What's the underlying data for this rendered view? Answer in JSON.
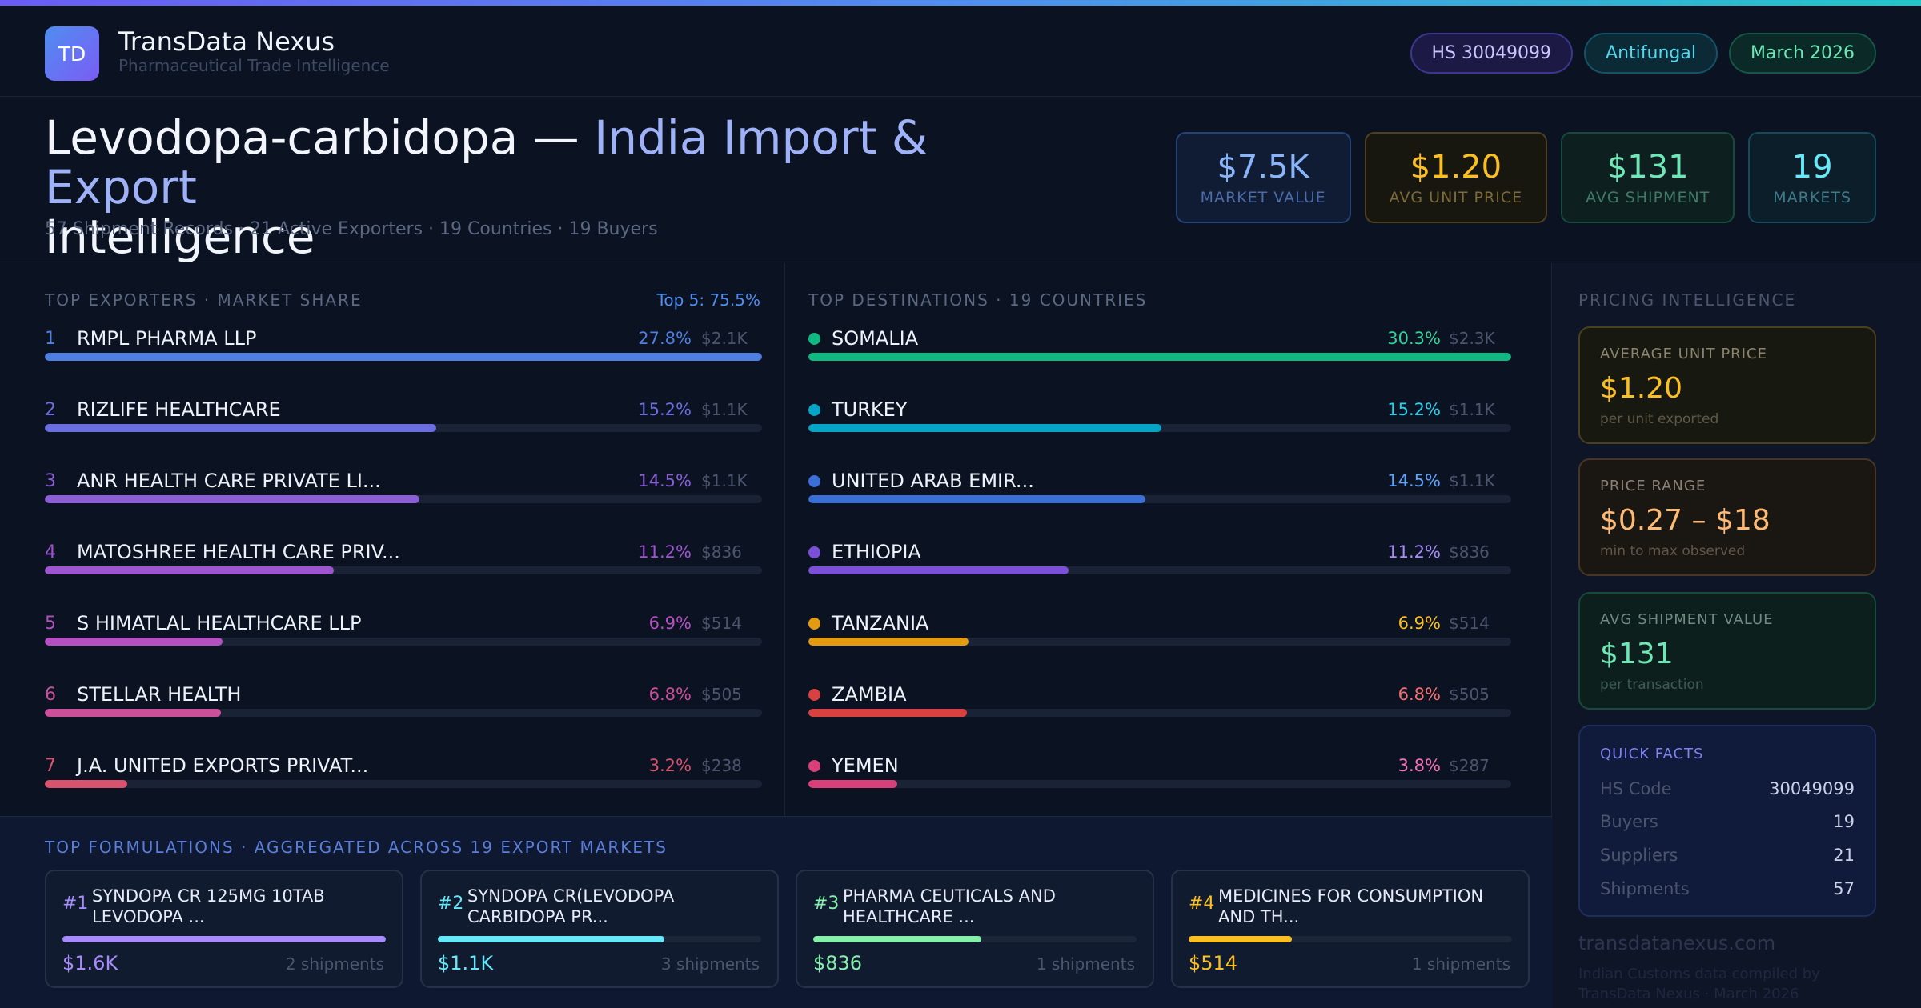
{
  "header": {
    "logo_text": "TD",
    "brand_name": "TransData Nexus",
    "brand_sub": "Pharmaceutical Trade Intelligence",
    "pills": [
      "HS 30049099",
      "Antifungal",
      "March 2026"
    ]
  },
  "hero": {
    "title_main": "Levodopa-carbidopa — ",
    "title_accent": "India Import & Export",
    "title_end": "Intelligence",
    "stats": "57 Shipment Records · 21 Active Exporters · 19 Countries · 19 Buyers"
  },
  "kpis": [
    {
      "value": "$7.5K",
      "label": "Market Value"
    },
    {
      "value": "$1.20",
      "label": "Avg Unit Price"
    },
    {
      "value": "$131",
      "label": "Avg Shipment"
    },
    {
      "value": "19",
      "label": "Markets"
    }
  ],
  "exporters": {
    "label": "Top Exporters · Market Share",
    "top5": "Top 5: 75.5%",
    "items": [
      {
        "rank": "1",
        "name": "RMPL PHARMA LLP",
        "pct": "27.8%",
        "amt": "$2.1K",
        "share": 1.0,
        "color": "#4f7fe0"
      },
      {
        "rank": "2",
        "name": "RIZLIFE HEALTHCARE",
        "pct": "15.2%",
        "amt": "$1.1K",
        "share": 0.546,
        "color": "#6b6ee0"
      },
      {
        "rank": "3",
        "name": "ANR HEALTH CARE PRIVATE LI...",
        "pct": "14.5%",
        "amt": "$1.1K",
        "share": 0.522,
        "color": "#8a5fd6"
      },
      {
        "rank": "4",
        "name": "MATOSHREE HEALTH CARE PRIV...",
        "pct": "11.2%",
        "amt": "$836",
        "share": 0.403,
        "color": "#9f55d0"
      },
      {
        "rank": "5",
        "name": "S HIMATLAL HEALTHCARE LLP",
        "pct": "6.9%",
        "amt": "$514",
        "share": 0.248,
        "color": "#b54fc2"
      },
      {
        "rank": "6",
        "name": "STELLAR HEALTH",
        "pct": "6.8%",
        "amt": "$505",
        "share": 0.245,
        "color": "#cc4f9a"
      },
      {
        "rank": "7",
        "name": "J.A. UNITED EXPORTS PRIVAT...",
        "pct": "3.2%",
        "amt": "$238",
        "share": 0.115,
        "color": "#d9536f"
      }
    ]
  },
  "destinations": {
    "label": "Top Destinations · 19 Countries",
    "items": [
      {
        "name": "SOMALIA",
        "pct": "30.3%",
        "amt": "$2.3K",
        "share": 1.0,
        "color": "#10b981",
        "pct_color": "#34d399"
      },
      {
        "name": "TURKEY",
        "pct": "15.2%",
        "amt": "$1.1K",
        "share": 0.502,
        "color": "#06a5c7",
        "pct_color": "#22d3ee"
      },
      {
        "name": "UNITED ARAB EMIR...",
        "pct": "14.5%",
        "amt": "$1.1K",
        "share": 0.48,
        "color": "#3b6fd8",
        "pct_color": "#60a5fa"
      },
      {
        "name": "ETHIOPIA",
        "pct": "11.2%",
        "amt": "$836",
        "share": 0.37,
        "color": "#7c4fd8",
        "pct_color": "#a78bfa"
      },
      {
        "name": "TANZANIA",
        "pct": "6.9%",
        "amt": "$514",
        "share": 0.228,
        "color": "#e59b0f",
        "pct_color": "#fbbf24"
      },
      {
        "name": "ZAMBIA",
        "pct": "6.8%",
        "amt": "$505",
        "share": 0.225,
        "color": "#d94040",
        "pct_color": "#f87171"
      },
      {
        "name": "YEMEN",
        "pct": "3.8%",
        "amt": "$287",
        "share": 0.126,
        "color": "#d9407a",
        "pct_color": "#f472b6"
      }
    ]
  },
  "formulations": {
    "label": "Top Formulations · Aggregated Across 19 Export Markets",
    "items": [
      {
        "rank": "#1",
        "name": "SYNDOPA CR 125MG 10TAB LEVODOPA ...",
        "value": "$1.6K",
        "shipments": "2 shipments",
        "share": 1.0,
        "color": "#a78bfa"
      },
      {
        "rank": "#2",
        "name": "SYNDOPA CR(LEVODOPA CARBIDOPA PR...",
        "value": "$1.1K",
        "shipments": "3 shipments",
        "share": 0.7,
        "color": "#67e8f9"
      },
      {
        "rank": "#3",
        "name": "PHARMA CEUTICALS AND HEALTHCARE ...",
        "value": "$836",
        "shipments": "1 shipments",
        "share": 0.52,
        "color": "#86efac"
      },
      {
        "rank": "#4",
        "name": "MEDICINES FOR CONSUMPTION AND TH...",
        "value": "$514",
        "shipments": "1 shipments",
        "share": 0.32,
        "color": "#fbbf24"
      }
    ]
  },
  "pricing": {
    "label": "Pricing Intelligence",
    "cards": [
      {
        "label": "Average Unit Price",
        "value": "$1.20",
        "note": "per unit exported"
      },
      {
        "label": "Price Range",
        "value": "$0.27 – $18",
        "note": "min to max observed"
      },
      {
        "label": "Avg Shipment Value",
        "value": "$131",
        "note": "per transaction"
      }
    ],
    "quick_facts": {
      "label": "Quick Facts",
      "rows": [
        {
          "k": "HS Code",
          "v": "30049099"
        },
        {
          "k": "Buyers",
          "v": "19"
        },
        {
          "k": "Suppliers",
          "v": "21"
        },
        {
          "k": "Shipments",
          "v": "57"
        }
      ]
    },
    "site": "transdatanexus.com",
    "site_note": "Indian Customs data compiled by TransData Nexus · March 2026"
  }
}
